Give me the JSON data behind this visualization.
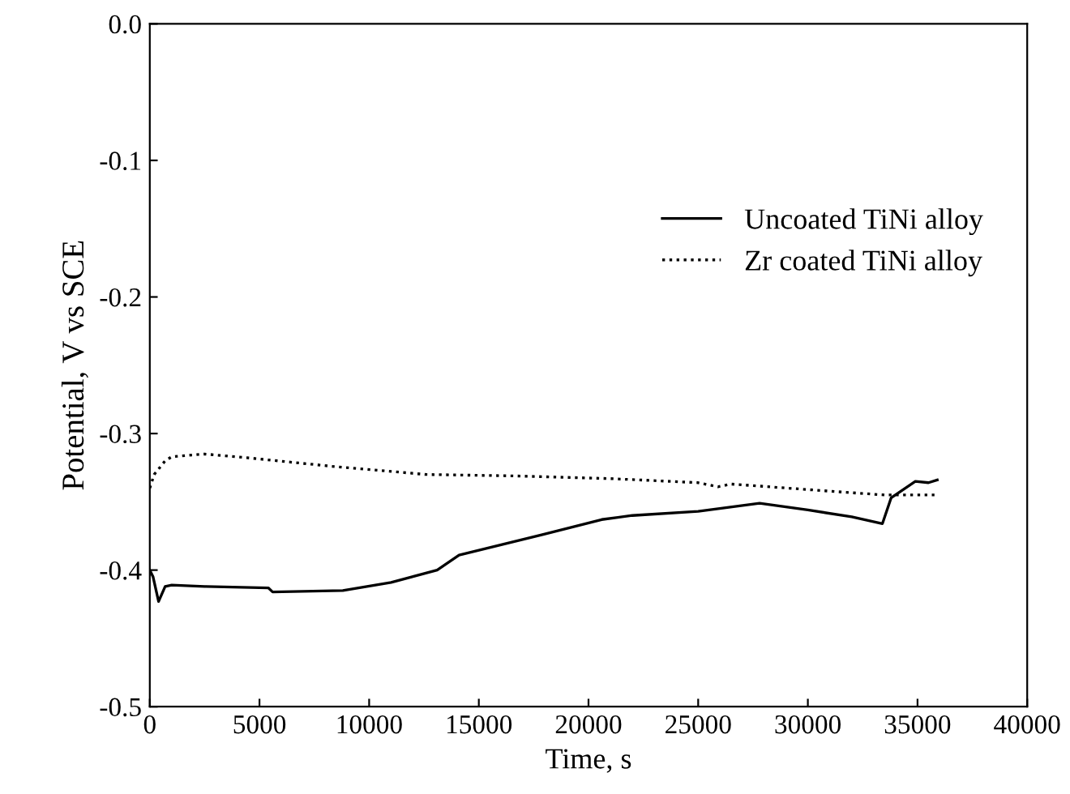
{
  "chart_data": {
    "type": "line",
    "xlabel": "Time, s",
    "ylabel": "Potential, V vs SCE",
    "xlim": [
      0,
      40000
    ],
    "ylim": [
      -0.5,
      0.0
    ],
    "xticks": [
      0,
      5000,
      10000,
      15000,
      20000,
      25000,
      30000,
      35000,
      40000
    ],
    "yticks": [
      {
        "value": -0.5,
        "label": "-0.5"
      },
      {
        "value": -0.4,
        "label": "-0.4"
      },
      {
        "value": -0.3,
        "label": "-0.3"
      },
      {
        "value": -0.2,
        "label": "-0.2"
      },
      {
        "value": -0.1,
        "label": "-0.1"
      },
      {
        "value": 0.0,
        "label": "0.0"
      }
    ],
    "legend": "right",
    "grid": false,
    "series": [
      {
        "name": "Uncoated TiNi alloy",
        "color": "#000000",
        "line_style": "solid",
        "x": [
          0,
          150,
          400,
          700,
          1000,
          2500,
          5400,
          5600,
          8800,
          11000,
          13100,
          14100,
          17900,
          20600,
          22000,
          25000,
          27800,
          30000,
          32000,
          33400,
          33800,
          34900,
          35500,
          35900
        ],
        "values": [
          -0.4,
          -0.405,
          -0.423,
          -0.412,
          -0.411,
          -0.412,
          -0.413,
          -0.416,
          -0.415,
          -0.409,
          -0.4,
          -0.389,
          -0.374,
          -0.363,
          -0.36,
          -0.357,
          -0.351,
          -0.356,
          -0.361,
          -0.366,
          -0.347,
          -0.335,
          -0.336,
          -0.334
        ]
      },
      {
        "name": "Zr coated TiNi alloy",
        "color": "#000000",
        "line_style": "dotted",
        "x": [
          0,
          200,
          700,
          1000,
          2500,
          4600,
          8300,
          12600,
          16500,
          21000,
          25000,
          25900,
          26500,
          31700,
          33500,
          35800
        ],
        "values": [
          -0.34,
          -0.33,
          -0.32,
          -0.317,
          -0.315,
          -0.318,
          -0.324,
          -0.33,
          -0.331,
          -0.333,
          -0.336,
          -0.339,
          -0.337,
          -0.343,
          -0.345,
          -0.345
        ]
      }
    ]
  }
}
